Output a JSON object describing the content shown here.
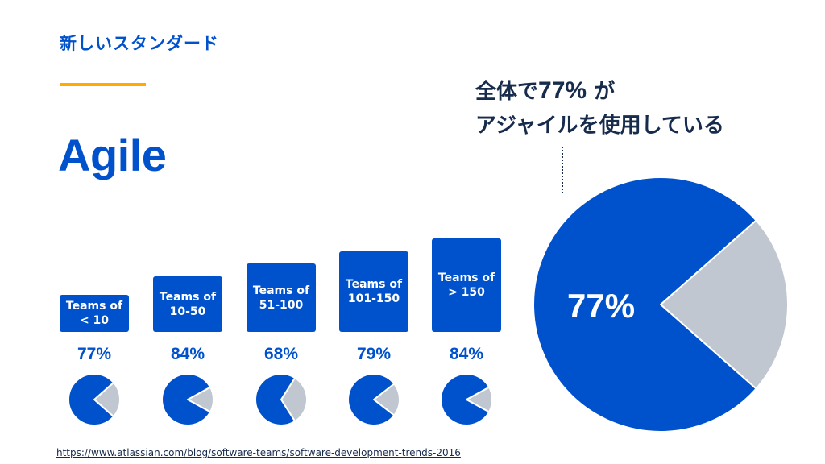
{
  "slide": {
    "subtitle": "新しいスタンダード",
    "title": "Agile",
    "callout_line1_prefix": "全体で",
    "callout_pct": "77%",
    "callout_line1_suffix": " が",
    "callout_line2": "アジャイルを使用している",
    "source_url": "https://www.atlassian.com/blog/software-teams/software-development-trends-2016"
  },
  "colors": {
    "blue": "#0052CC",
    "gray": "#C1C7D0",
    "accent": "#FFAB00",
    "navy": "#172B4D"
  },
  "chart_data": [
    {
      "type": "pie",
      "categories": [
        "Teams of < 10",
        "Teams of 10-50",
        "Teams of 51-100",
        "Teams of 101-150",
        "Teams of > 150"
      ],
      "values": [
        77,
        84,
        68,
        79,
        84
      ],
      "labels": [
        "77%",
        "84%",
        "68%",
        "79%",
        "84%"
      ],
      "box_line1": [
        "Teams of",
        "Teams of",
        "Teams of",
        "Teams of",
        "Teams of"
      ],
      "box_line2": [
        "< 10",
        "10-50",
        "51-100",
        "101-150",
        "> 150"
      ]
    },
    {
      "type": "pie",
      "values": [
        77,
        23
      ],
      "label": "77%"
    }
  ]
}
